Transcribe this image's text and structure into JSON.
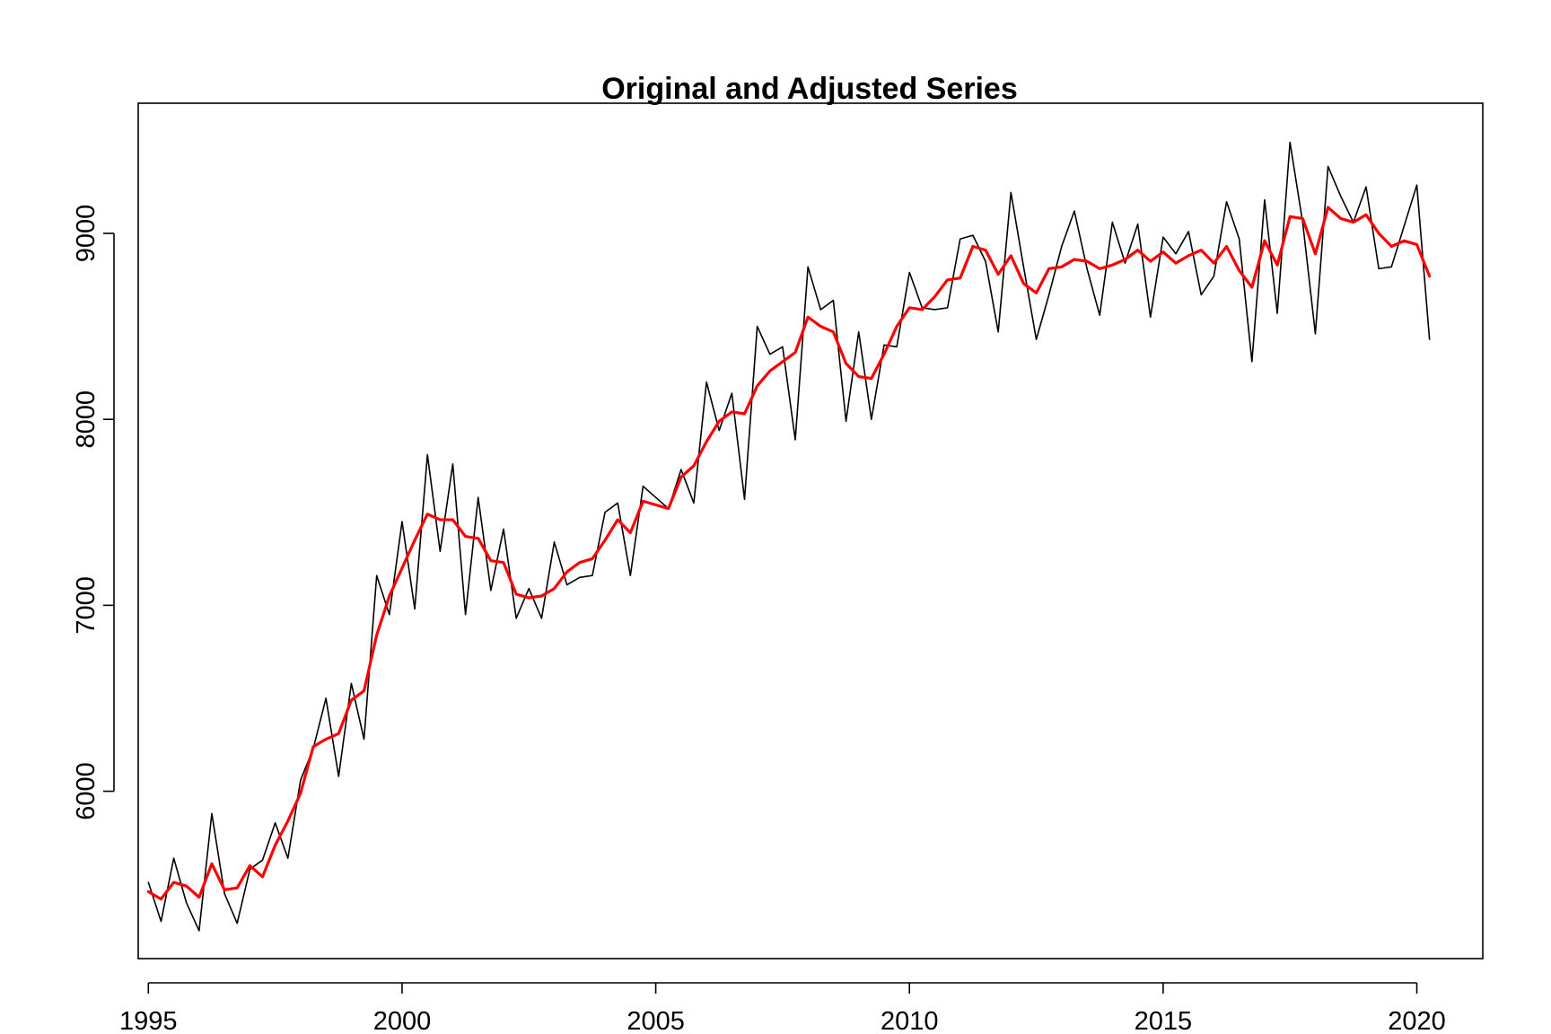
{
  "chart_data": {
    "type": "line",
    "title": "Original and Adjusted Series",
    "xlabel": "",
    "ylabel": "",
    "xlim": [
      1994.8,
      2021.3
    ],
    "ylim": [
      5100,
      9700
    ],
    "x_ticks": [
      1995,
      2000,
      2005,
      2010,
      2015,
      2020
    ],
    "x_tick_labels": [
      "1995",
      "2000",
      "2005",
      "2010",
      "2015",
      "2020"
    ],
    "y_ticks": [
      6000,
      7000,
      8000,
      9000
    ],
    "y_tick_labels": [
      "6000",
      "7000",
      "8000",
      "9000"
    ],
    "grid": false,
    "legend": "none",
    "x_start": 1995.0,
    "x_step": 0.25,
    "series": [
      {
        "color": "#000000",
        "line_width": 1.6,
        "values": [
          5510,
          5300,
          5640,
          5400,
          5250,
          5880,
          5450,
          5290,
          5580,
          5630,
          5830,
          5640,
          6060,
          6230,
          6500,
          6080,
          6580,
          6280,
          7160,
          6950,
          7450,
          6980,
          7810,
          7290,
          7760,
          6950,
          7580,
          7080,
          7410,
          6930,
          7090,
          6930,
          7340,
          7110,
          7150,
          7160,
          7500,
          7550,
          7160,
          7640,
          7580,
          7520,
          7730,
          7550,
          8200,
          7940,
          8140,
          7570,
          8500,
          8350,
          8390,
          7890,
          8820,
          8590,
          8640,
          7990,
          8470,
          8000,
          8400,
          8390,
          8790,
          8600,
          8590,
          8600,
          8970,
          8990,
          8850,
          8470,
          9220,
          8820,
          8430,
          8670,
          8930,
          9120,
          8810,
          8560,
          9060,
          8840,
          9050,
          8550,
          8980,
          8890,
          9010,
          8670,
          8770,
          9170,
          8970,
          8310,
          9180,
          8570,
          9490,
          9060,
          8460,
          9360,
          9200,
          9060,
          9250,
          8810,
          8820,
          9040,
          9260,
          8430
        ]
      },
      {
        "color": "#ff0000",
        "line_width": 3.2,
        "values": [
          5460,
          5420,
          5510,
          5490,
          5430,
          5610,
          5470,
          5480,
          5600,
          5540,
          5710,
          5840,
          5990,
          6240,
          6280,
          6310,
          6490,
          6540,
          6840,
          7050,
          7200,
          7350,
          7490,
          7460,
          7460,
          7370,
          7360,
          7240,
          7230,
          7060,
          7040,
          7050,
          7090,
          7180,
          7230,
          7250,
          7350,
          7460,
          7390,
          7560,
          7540,
          7520,
          7690,
          7750,
          7880,
          7990,
          8040,
          8030,
          8180,
          8260,
          8310,
          8360,
          8550,
          8500,
          8470,
          8300,
          8230,
          8220,
          8350,
          8500,
          8600,
          8590,
          8660,
          8750,
          8760,
          8930,
          8910,
          8780,
          8880,
          8730,
          8680,
          8810,
          8820,
          8860,
          8850,
          8810,
          8830,
          8860,
          8910,
          8850,
          8900,
          8840,
          8880,
          8910,
          8840,
          8930,
          8800,
          8710,
          8960,
          8830,
          9090,
          9080,
          8890,
          9140,
          9080,
          9060,
          9100,
          9000,
          8930,
          8960,
          8940,
          8770
        ]
      }
    ]
  }
}
